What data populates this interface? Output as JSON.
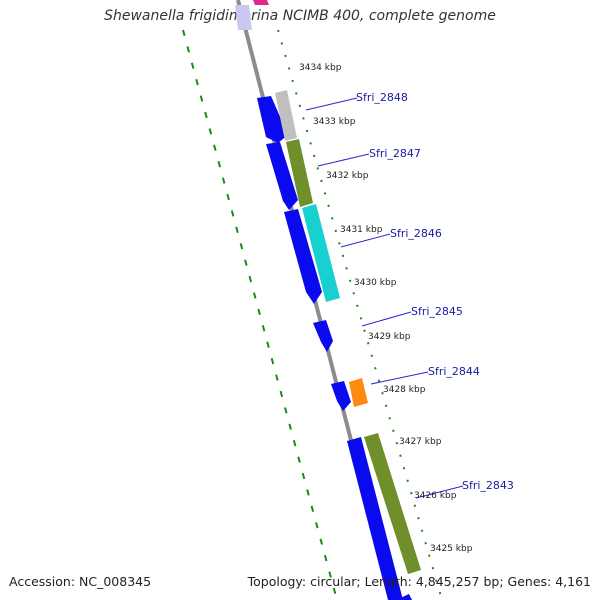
{
  "title": "Shewanella frigidimarina NCIMB 400, complete genome",
  "footer": {
    "accession": "Accession: NC_008345",
    "summary": "Topology: circular; Length: 4,845,257 bp; Genes: 4,161"
  },
  "ticks": [
    {
      "label": "3434 kbp"
    },
    {
      "label": "3433 kbp"
    },
    {
      "label": "3432 kbp"
    },
    {
      "label": "3431 kbp"
    },
    {
      "label": "3430 kbp"
    },
    {
      "label": "3429 kbp"
    },
    {
      "label": "3428 kbp"
    },
    {
      "label": "3427 kbp"
    },
    {
      "label": "3426 kbp"
    },
    {
      "label": "3425 kbp"
    }
  ],
  "gene_labels": [
    {
      "label": "Sfri_2848"
    },
    {
      "label": "Sfri_2847"
    },
    {
      "label": "Sfri_2846"
    },
    {
      "label": "Sfri_2845"
    },
    {
      "label": "Sfri_2844"
    },
    {
      "label": "Sfri_2843"
    }
  ],
  "colors": {
    "backbone": "#8c8c8c",
    "cds": "#0a0aee",
    "feature_gray": "#c0c0c0",
    "feature_olive": "#6f8f2a",
    "feature_cyan": "#18d0d0",
    "feature_orange": "#ff8a10",
    "feature_pink": "#e0288c",
    "feature_lavender": "#c8c8f0",
    "gc_dots": "#1a8a1a",
    "label_line": "#2828d0"
  }
}
